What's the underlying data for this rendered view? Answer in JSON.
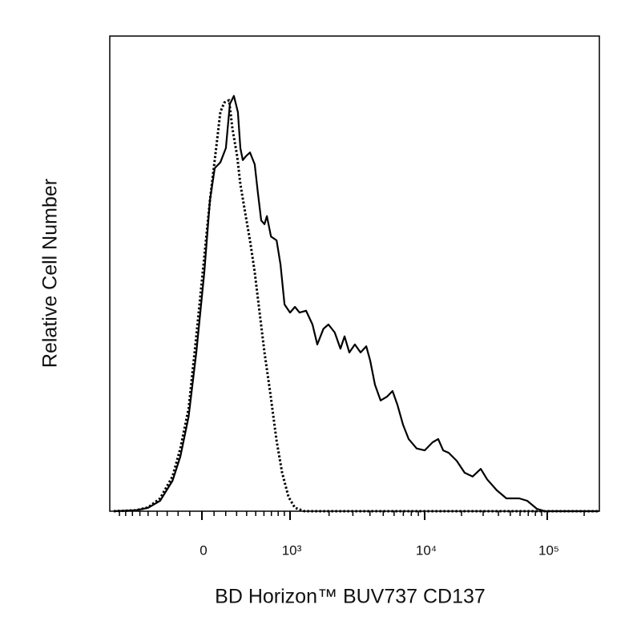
{
  "chart_data": {
    "type": "line",
    "x_label": "BD Horizon™ BUV737 CD137",
    "y_label": "Relative Cell Number",
    "xscale": "biexponential",
    "xlim": [
      -1000,
      262144
    ],
    "xticks": [
      0,
      {
        "value": 1000,
        "label": "10³"
      },
      {
        "value": 10000,
        "label": "10⁴"
      },
      {
        "value": 100000,
        "label": "10⁵"
      }
    ],
    "xminor_ticks": [
      -900,
      -800,
      -700,
      -600,
      -500,
      -400,
      -300,
      -200,
      -100,
      100,
      200,
      300,
      400,
      500,
      600,
      700,
      800,
      900,
      2000,
      3000,
      4000,
      5000,
      6000,
      7000,
      8000,
      9000,
      20000,
      30000,
      40000,
      50000,
      60000,
      70000,
      80000,
      90000,
      200000
    ],
    "ylim": [
      0,
      100
    ],
    "series": [
      {
        "color": "#000000",
        "style": "solid",
        "x": [
          -1000,
          -650,
          -500,
          -370,
          -250,
          -180,
          -110,
          -46,
          20,
          66,
          106,
          153,
          201,
          237,
          274,
          312,
          336,
          360,
          392,
          436,
          488,
          525,
          566,
          607,
          639,
          694,
          776,
          837,
          903,
          1000,
          1095,
          1189,
          1338,
          1500,
          1630,
          1815,
          1978,
          2205,
          2430,
          2605,
          2825,
          3105,
          3415,
          3760,
          4015,
          4355,
          4785,
          5325,
          5845,
          6340,
          6965,
          7650,
          8745,
          10000,
          11600,
          12900,
          14150,
          15700,
          18250,
          21200,
          24650,
          28700,
          32350,
          38750,
          46400,
          59100,
          68650,
          82250,
          95500,
          262144
        ],
        "values": [
          0,
          0.2,
          0.7,
          2.2,
          6.4,
          11.5,
          19.9,
          33.4,
          50.3,
          65.4,
          72.2,
          73.4,
          76.4,
          85.7,
          87.4,
          84.0,
          76.4,
          73.9,
          74.7,
          75.5,
          73.0,
          67.1,
          61.2,
          60.4,
          62.1,
          57.8,
          57.0,
          51.9,
          43.5,
          41.8,
          43.0,
          41.8,
          42.2,
          39.3,
          35.1,
          38.4,
          39.3,
          37.6,
          34.2,
          36.8,
          33.4,
          35.1,
          33.4,
          34.7,
          31.7,
          26.6,
          23.3,
          24.1,
          25.3,
          22.4,
          18.2,
          15.2,
          13.2,
          12.8,
          14.5,
          15.2,
          12.8,
          12.3,
          10.6,
          8.1,
          7.3,
          8.9,
          6.7,
          4.4,
          2.7,
          2.7,
          2.2,
          0.5,
          0,
          0
        ]
      },
      {
        "color": "#000000",
        "style": "dotted",
        "x": [
          -1000,
          -650,
          -500,
          -370,
          -250,
          -180,
          -110,
          -46,
          20,
          66,
          106,
          153,
          187,
          230,
          260,
          305,
          336,
          384,
          436,
          488,
          546,
          607,
          683,
          776,
          863,
          972,
          1095,
          1300,
          262144
        ],
        "values": [
          0,
          0.2,
          0.8,
          2.7,
          7.3,
          13.2,
          21.6,
          36.8,
          53.6,
          65.4,
          73.9,
          84.0,
          86.0,
          86.5,
          80.6,
          74.7,
          68.8,
          62.9,
          57.0,
          50.3,
          41.8,
          33.4,
          25.0,
          14.8,
          8.1,
          3.0,
          0.7,
          0,
          0
        ]
      }
    ]
  }
}
